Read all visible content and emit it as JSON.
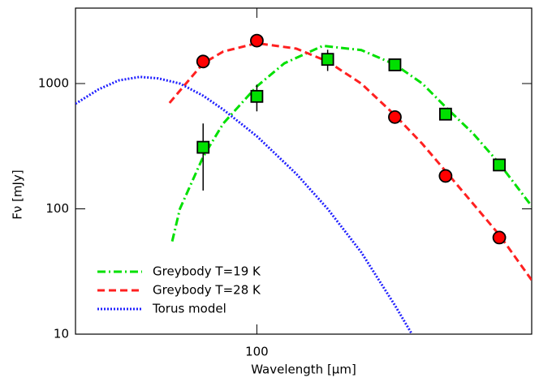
{
  "chart_data": {
    "type": "line",
    "xlabel": "Wavelength [μm]",
    "ylabel": "Fν [mJy]",
    "xlog": true,
    "ylog": true,
    "xlim": [
      30,
      620
    ],
    "ylim": [
      10,
      4000
    ],
    "xticks": [
      100
    ],
    "yticks": [
      10,
      100,
      1000
    ],
    "legend": "lower left",
    "series": [
      {
        "name": "Greybody T=19 K",
        "color": "#00e000",
        "style": "dash-dot",
        "x": [
          57,
          60,
          70,
          80,
          100,
          120,
          155,
          200,
          250,
          300,
          350,
          420,
          500,
          620
        ],
        "values": [
          55,
          100,
          260,
          480,
          950,
          1450,
          2000,
          1850,
          1420,
          1000,
          650,
          400,
          230,
          105
        ]
      },
      {
        "name": "Greybody T=28 K",
        "color": "#ff2020",
        "style": "dashed",
        "x": [
          56,
          70,
          80,
          100,
          130,
          160,
          200,
          250,
          300,
          350,
          420,
          500,
          620
        ],
        "values": [
          700,
          1450,
          1800,
          2100,
          1900,
          1500,
          1000,
          560,
          330,
          200,
          110,
          62,
          27
        ]
      },
      {
        "name": "Torus model",
        "color": "#2020ff",
        "style": "dotted",
        "x": [
          30,
          35,
          40,
          46,
          52,
          60,
          70,
          80,
          100,
          130,
          160,
          200,
          250,
          280
        ],
        "values": [
          690,
          900,
          1060,
          1130,
          1100,
          1000,
          800,
          620,
          380,
          190,
          100,
          45,
          17,
          10
        ]
      }
    ],
    "points": [
      {
        "marker": "circle",
        "color": "#ff0000",
        "x": [
          70,
          100,
          250,
          350,
          500
        ],
        "values": [
          1500,
          2200,
          540,
          183,
          59
        ]
      },
      {
        "marker": "square",
        "color": "#00e000",
        "x": [
          70,
          100,
          160,
          250,
          350,
          500
        ],
        "values": [
          310,
          790,
          1560,
          1410,
          570,
          224
        ],
        "errors": [
          170,
          190,
          300,
          null,
          null,
          null
        ]
      }
    ]
  }
}
